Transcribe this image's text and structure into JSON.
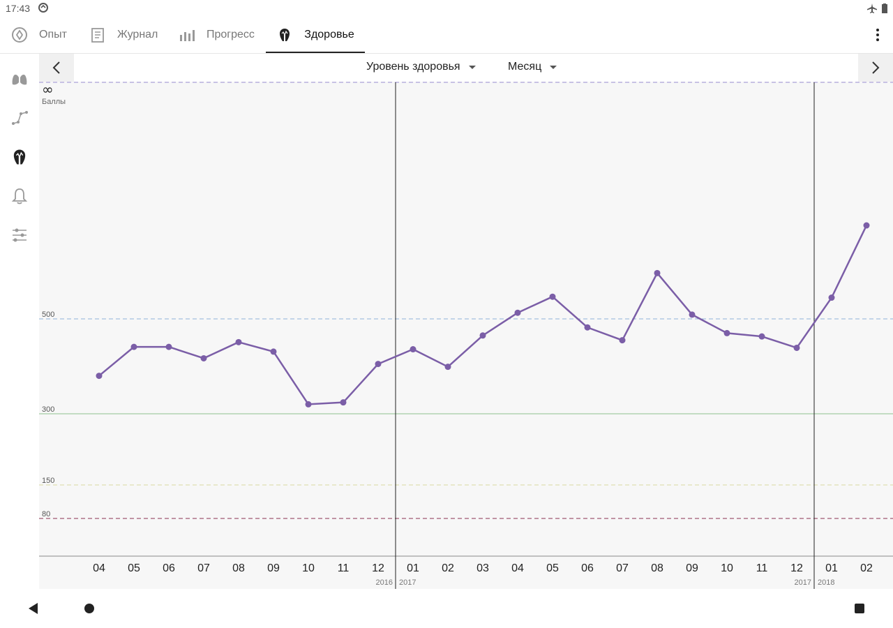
{
  "status": {
    "time": "17:43"
  },
  "tabs": [
    {
      "label": "Опыт",
      "icon": "experience-icon"
    },
    {
      "label": "Журнал",
      "icon": "journal-icon"
    },
    {
      "label": "Прогресс",
      "icon": "progress-icon"
    },
    {
      "label": "Здоровье",
      "icon": "health-icon",
      "active": true
    }
  ],
  "controls": {
    "metric": "Уровень здоровья",
    "period": "Месяц"
  },
  "chart_data": {
    "type": "line",
    "y_top_label": "∞",
    "ylabel": "Баллы",
    "reference_lines": [
      {
        "value": 500,
        "label": "500",
        "color": "#8fb0d8",
        "style": "dashed"
      },
      {
        "value": 300,
        "label": "300",
        "color": "#8cc08c",
        "style": "solid"
      },
      {
        "value": 150,
        "label": "150",
        "color": "#d8d8a0",
        "style": "dashed"
      },
      {
        "value": 80,
        "label": "80",
        "color": "#8a3050",
        "style": "dashed"
      }
    ],
    "top_line_color": "#9a8cd0",
    "categories": [
      "04",
      "05",
      "06",
      "07",
      "08",
      "09",
      "10",
      "11",
      "12",
      "01",
      "02",
      "03",
      "04",
      "05",
      "06",
      "07",
      "08",
      "09",
      "10",
      "11",
      "12",
      "01",
      "02"
    ],
    "year_marks": [
      {
        "after_index": 8,
        "left": "2016",
        "right": "2017"
      },
      {
        "after_index": 20,
        "left": "2017",
        "right": "2018"
      }
    ],
    "series": [
      {
        "color": "#7b5ea7",
        "values": [
          380,
          441,
          441,
          417,
          451,
          431,
          320,
          324,
          405,
          436,
          399,
          465,
          513,
          547,
          482,
          455,
          597,
          509,
          470,
          463,
          439,
          545,
          698
        ]
      }
    ]
  }
}
